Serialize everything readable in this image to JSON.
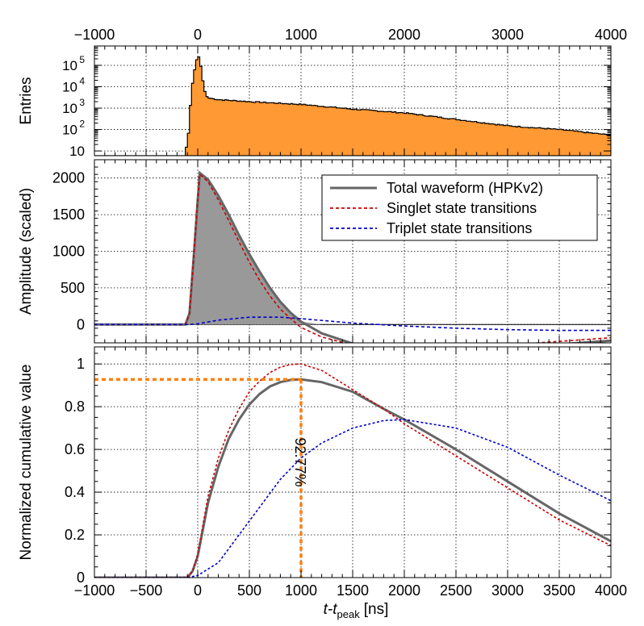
{
  "chart_data": [
    {
      "panel": "top",
      "type": "histogram",
      "ylabel": "Entries",
      "yscale": "log",
      "xlim": [
        -1000,
        4000
      ],
      "ylim": [
        6,
        800000
      ],
      "x_tick_labels": [
        "−1000",
        "0",
        "1000",
        "2000",
        "3000",
        "4000"
      ],
      "x_ticks": [
        -1000,
        0,
        1000,
        2000,
        3000,
        4000
      ],
      "y_ticks": [
        10,
        100,
        1000,
        10000,
        100000
      ],
      "y_tick_labels": [
        "10",
        "10",
        "10",
        "10",
        "10"
      ],
      "y_tick_exponents": [
        "",
        "2",
        "3",
        "4",
        "5"
      ],
      "fill_color": "#ff9933",
      "bin_width": 20,
      "points": [
        [
          -1000,
          0
        ],
        [
          -120,
          0
        ],
        [
          -100,
          15
        ],
        [
          -80,
          300
        ],
        [
          -60,
          6000
        ],
        [
          -40,
          35000
        ],
        [
          -20,
          110000
        ],
        [
          0,
          300000
        ],
        [
          20,
          200000
        ],
        [
          40,
          40000
        ],
        [
          60,
          9000
        ],
        [
          80,
          4000
        ],
        [
          100,
          3000
        ],
        [
          200,
          2500
        ],
        [
          500,
          2000
        ],
        [
          1000,
          1500
        ],
        [
          1500,
          900
        ],
        [
          2000,
          600
        ],
        [
          2500,
          300
        ],
        [
          3000,
          150
        ],
        [
          3500,
          100
        ],
        [
          4000,
          55
        ]
      ]
    },
    {
      "panel": "middle",
      "type": "line",
      "ylabel": "Amplitude (scaled)",
      "xlim": [
        -1000,
        4000
      ],
      "ylim": [
        -250,
        2250
      ],
      "y_ticks": [
        0,
        500,
        1000,
        1500,
        2000
      ],
      "y_tick_labels": [
        "0",
        "500",
        "1000",
        "1500",
        "2000"
      ],
      "legend_position": "top-right",
      "series": [
        {
          "name": "Total waveform (HPKv2)",
          "color": "#666666",
          "style": "solid",
          "filled": true,
          "points": [
            [
              -1000,
              0
            ],
            [
              -120,
              0
            ],
            [
              -80,
              150
            ],
            [
              -40,
              900
            ],
            [
              0,
              1700
            ],
            [
              20,
              2070
            ],
            [
              100,
              1980
            ],
            [
              200,
              1760
            ],
            [
              300,
              1500
            ],
            [
              400,
              1220
            ],
            [
              500,
              960
            ],
            [
              600,
              720
            ],
            [
              700,
              500
            ],
            [
              800,
              310
            ],
            [
              900,
              160
            ],
            [
              1000,
              40
            ],
            [
              1200,
              -120
            ],
            [
              1500,
              -260
            ],
            [
              1800,
              -330
            ],
            [
              2000,
              -350
            ],
            [
              2500,
              -350
            ],
            [
              3000,
              -320
            ],
            [
              3500,
              -270
            ],
            [
              4000,
              -220
            ]
          ]
        },
        {
          "name": "Singlet state transitions",
          "color": "#cc0000",
          "style": "dashed",
          "points": [
            [
              -1000,
              0
            ],
            [
              -120,
              0
            ],
            [
              -80,
              150
            ],
            [
              -40,
              900
            ],
            [
              0,
              1700
            ],
            [
              20,
              2050
            ],
            [
              100,
              1950
            ],
            [
              200,
              1700
            ],
            [
              300,
              1420
            ],
            [
              400,
              1130
            ],
            [
              500,
              850
            ],
            [
              600,
              600
            ],
            [
              700,
              390
            ],
            [
              800,
              210
            ],
            [
              900,
              80
            ],
            [
              1000,
              -40
            ],
            [
              1200,
              -170
            ],
            [
              1500,
              -280
            ],
            [
              1800,
              -330
            ],
            [
              2000,
              -345
            ],
            [
              2500,
              -320
            ],
            [
              3000,
              -280
            ],
            [
              3500,
              -230
            ],
            [
              4000,
              -180
            ]
          ]
        },
        {
          "name": "Triplet state transitions",
          "color": "#0000cc",
          "style": "dashed",
          "points": [
            [
              -1000,
              0
            ],
            [
              -100,
              0
            ],
            [
              0,
              10
            ],
            [
              200,
              60
            ],
            [
              500,
              100
            ],
            [
              800,
              100
            ],
            [
              1000,
              80
            ],
            [
              1500,
              20
            ],
            [
              2000,
              -20
            ],
            [
              2500,
              -50
            ],
            [
              3000,
              -70
            ],
            [
              3500,
              -80
            ],
            [
              4000,
              -80
            ]
          ]
        }
      ]
    },
    {
      "panel": "bottom",
      "type": "line",
      "xlabel": "t-t",
      "xlabel_sub": "peak",
      "xlabel_unit": "[ns]",
      "ylabel": "Normalized cumulative value",
      "xlim": [
        -1000,
        4000
      ],
      "ylim": [
        0,
        1.08
      ],
      "x_ticks": [
        -1000,
        -500,
        0,
        500,
        1000,
        1500,
        2000,
        2500,
        3000,
        3500,
        4000
      ],
      "x_tick_labels": [
        "−1000",
        "−500",
        "0",
        "500",
        "1000",
        "1500",
        "2000",
        "2500",
        "3000",
        "3500",
        "4000"
      ],
      "y_ticks": [
        0,
        0.2,
        0.4,
        0.6,
        0.8,
        1
      ],
      "y_tick_labels": [
        "0",
        "0.2",
        "0.4",
        "0.6",
        "0.8",
        "1"
      ],
      "annotation": {
        "text": "92.77%",
        "x": 1000,
        "y": 0.9277,
        "color": "#ff7f0e"
      },
      "series": [
        {
          "name": "Total waveform (HPKv2)",
          "color": "#666666",
          "style": "solid",
          "points": [
            [
              -1000,
              0
            ],
            [
              -100,
              0
            ],
            [
              -50,
              0.03
            ],
            [
              0,
              0.1
            ],
            [
              100,
              0.35
            ],
            [
              200,
              0.52
            ],
            [
              300,
              0.65
            ],
            [
              400,
              0.74
            ],
            [
              500,
              0.81
            ],
            [
              600,
              0.86
            ],
            [
              700,
              0.895
            ],
            [
              800,
              0.915
            ],
            [
              900,
              0.925
            ],
            [
              1000,
              0.928
            ],
            [
              1200,
              0.915
            ],
            [
              1500,
              0.87
            ],
            [
              1800,
              0.79
            ],
            [
              2000,
              0.74
            ],
            [
              2500,
              0.6
            ],
            [
              3000,
              0.45
            ],
            [
              3500,
              0.3
            ],
            [
              4000,
              0.17
            ]
          ]
        },
        {
          "name": "Singlet state transitions",
          "color": "#cc0000",
          "style": "dashed",
          "points": [
            [
              -1000,
              0
            ],
            [
              -100,
              0
            ],
            [
              -50,
              0.03
            ],
            [
              0,
              0.11
            ],
            [
              100,
              0.38
            ],
            [
              200,
              0.56
            ],
            [
              300,
              0.69
            ],
            [
              400,
              0.79
            ],
            [
              500,
              0.87
            ],
            [
              600,
              0.92
            ],
            [
              700,
              0.96
            ],
            [
              800,
              0.985
            ],
            [
              900,
              0.998
            ],
            [
              1000,
              1.0
            ],
            [
              1200,
              0.97
            ],
            [
              1500,
              0.88
            ],
            [
              1800,
              0.79
            ],
            [
              2000,
              0.72
            ],
            [
              2500,
              0.57
            ],
            [
              3000,
              0.42
            ],
            [
              3500,
              0.27
            ],
            [
              4000,
              0.15
            ]
          ]
        },
        {
          "name": "Triplet state transitions",
          "color": "#0000cc",
          "style": "dashed",
          "points": [
            [
              -1000,
              0
            ],
            [
              -100,
              0
            ],
            [
              0,
              0.01
            ],
            [
              200,
              0.07
            ],
            [
              400,
              0.2
            ],
            [
              600,
              0.33
            ],
            [
              800,
              0.46
            ],
            [
              1000,
              0.56
            ],
            [
              1200,
              0.63
            ],
            [
              1500,
              0.7
            ],
            [
              1800,
              0.735
            ],
            [
              2000,
              0.74
            ],
            [
              2500,
              0.7
            ],
            [
              3000,
              0.61
            ],
            [
              3500,
              0.48
            ],
            [
              4000,
              0.36
            ]
          ]
        }
      ]
    }
  ]
}
